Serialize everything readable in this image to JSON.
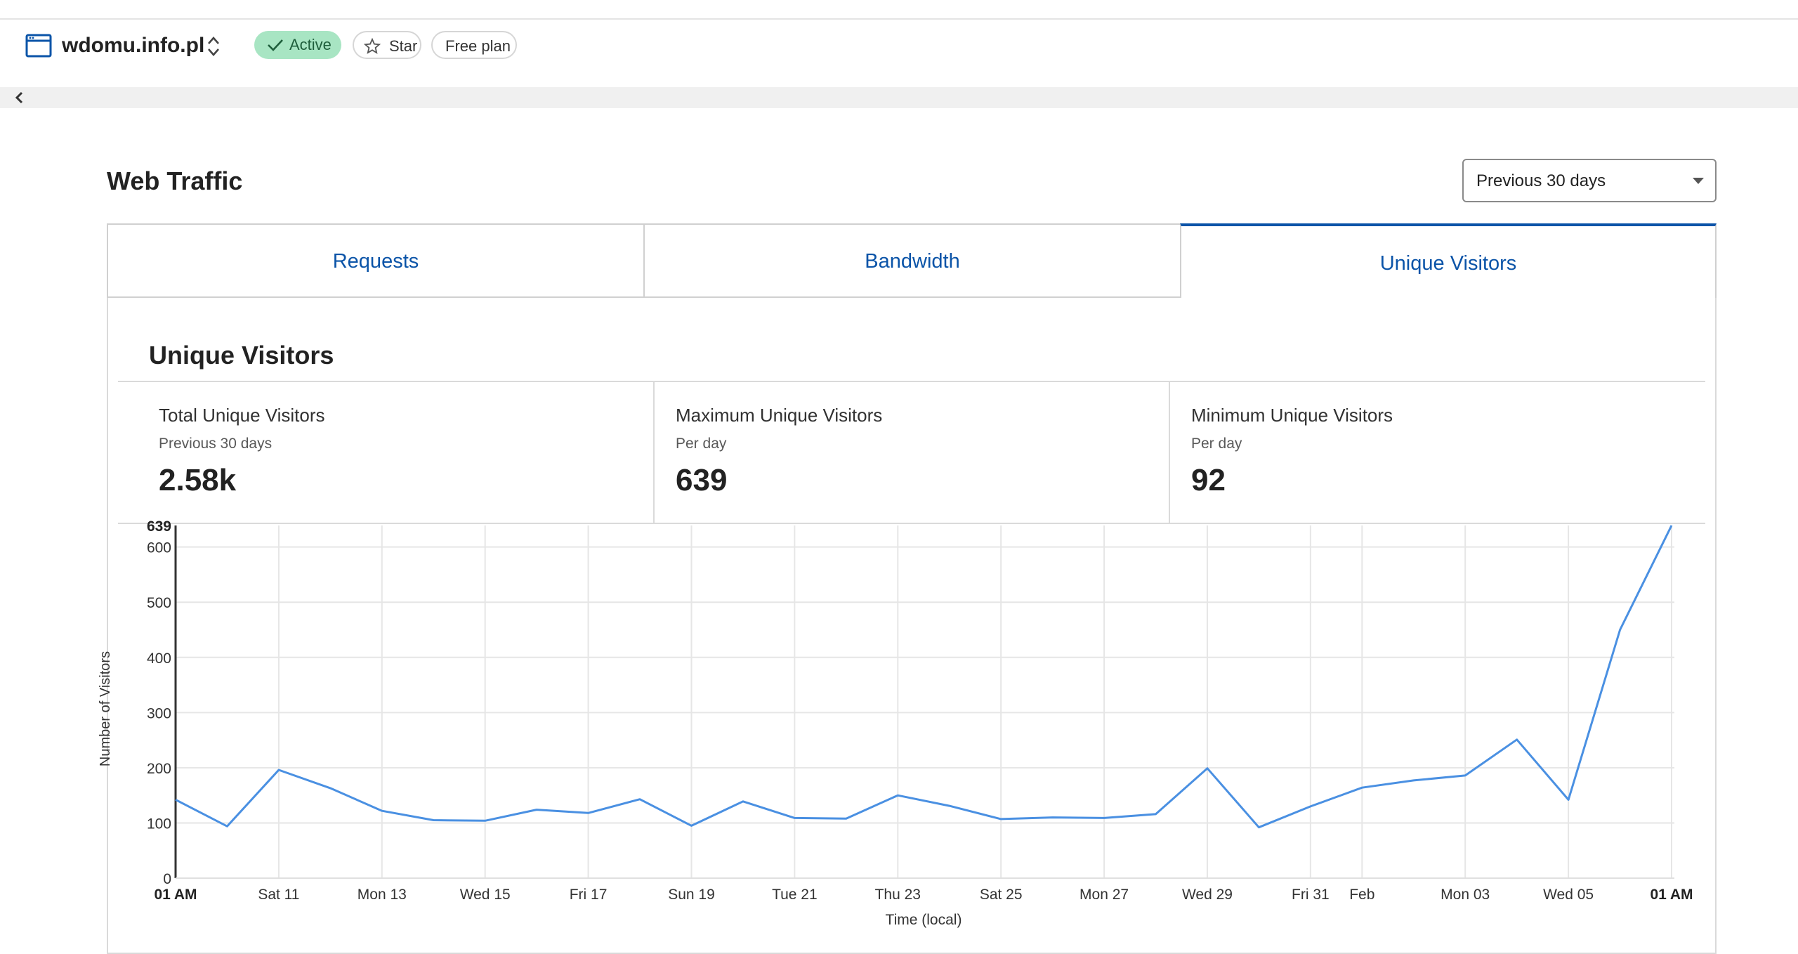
{
  "header": {
    "site_name": "wdomu.info.pl",
    "status": "Active",
    "star_label": "Star",
    "plan": "Free plan"
  },
  "page": {
    "title": "Web Traffic",
    "range": "Previous 30 days"
  },
  "tabs": [
    {
      "label": "Requests",
      "active": false
    },
    {
      "label": "Bandwidth",
      "active": false
    },
    {
      "label": "Unique Visitors",
      "active": true
    }
  ],
  "panel_title": "Unique Visitors",
  "stats": [
    {
      "label": "Total Unique Visitors",
      "sub": "Previous 30 days",
      "value": "2.58k"
    },
    {
      "label": "Maximum Unique Visitors",
      "sub": "Per day",
      "value": "639"
    },
    {
      "label": "Minimum Unique Visitors",
      "sub": "Per day",
      "value": "92"
    }
  ],
  "colors": {
    "accent": "#0b54a8",
    "line": "#4a90e2",
    "active_badge": "#a8e5c3"
  },
  "chart_data": {
    "type": "line",
    "xlabel": "Time (local)",
    "ylabel": "Number of Visitors",
    "ylim": [
      0,
      639
    ],
    "yticks": [
      0,
      100,
      200,
      300,
      400,
      500,
      600
    ],
    "ymax_label": "639",
    "x_start_label": "01 AM",
    "x_end_label": "01 AM",
    "xticks": [
      {
        "day": 2,
        "label": "Sat 11"
      },
      {
        "day": 4,
        "label": "Mon 13"
      },
      {
        "day": 6,
        "label": "Wed 15"
      },
      {
        "day": 8,
        "label": "Fri 17"
      },
      {
        "day": 10,
        "label": "Sun 19"
      },
      {
        "day": 12,
        "label": "Tue 21"
      },
      {
        "day": 14,
        "label": "Thu 23"
      },
      {
        "day": 16,
        "label": "Sat 25"
      },
      {
        "day": 18,
        "label": "Mon 27"
      },
      {
        "day": 20,
        "label": "Wed 29"
      },
      {
        "day": 22,
        "label": "Fri 31"
      },
      {
        "day": 23,
        "label": "Feb"
      },
      {
        "day": 25,
        "label": "Mon 03"
      },
      {
        "day": 27,
        "label": "Wed 05"
      }
    ],
    "grid": true,
    "series": [
      {
        "values": [
          142,
          94,
          196,
          163,
          122,
          105,
          104,
          124,
          118,
          143,
          95,
          139,
          109,
          108,
          150,
          131,
          107,
          110,
          109,
          116,
          199,
          92,
          130,
          164,
          177,
          186,
          251,
          142,
          450,
          639
        ]
      }
    ]
  }
}
